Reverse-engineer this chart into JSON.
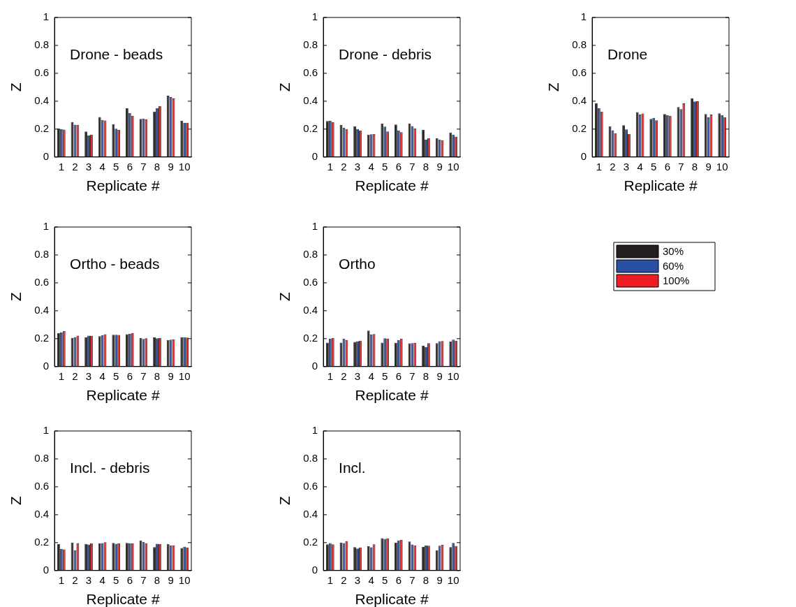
{
  "chart_data": [
    {
      "type": "bar",
      "title": "Drone - beads",
      "xlabel": "Replicate #",
      "ylabel": "Z",
      "categories": [
        "1",
        "2",
        "3",
        "4",
        "5",
        "6",
        "7",
        "8",
        "9",
        "10"
      ],
      "ylim": [
        0,
        1
      ],
      "yticks": [
        0,
        0.2,
        0.4,
        0.6,
        0.8,
        1
      ],
      "grid": false,
      "series": [
        {
          "color": "#231f20",
          "values": [
            0.205,
            0.25,
            0.183,
            0.287,
            0.236,
            0.35,
            0.273,
            0.325,
            0.44,
            0.26
          ]
        },
        {
          "color": "#2b4fa2",
          "values": [
            0.2,
            0.232,
            0.155,
            0.266,
            0.203,
            0.315,
            0.276,
            0.35,
            0.43,
            0.245
          ]
        },
        {
          "color": "#ee1c24",
          "values": [
            0.197,
            0.23,
            0.16,
            0.262,
            0.195,
            0.295,
            0.27,
            0.365,
            0.42,
            0.245
          ]
        }
      ]
    },
    {
      "type": "bar",
      "title": "Drone - debris",
      "xlabel": "Replicate #",
      "ylabel": "Z",
      "categories": [
        "1",
        "2",
        "3",
        "4",
        "5",
        "6",
        "7",
        "8",
        "9",
        "10"
      ],
      "ylim": [
        0,
        1
      ],
      "yticks": [
        0,
        0.2,
        0.4,
        0.6,
        0.8,
        1
      ],
      "grid": false,
      "series": [
        {
          "color": "#231f20",
          "values": [
            0.258,
            0.23,
            0.22,
            0.16,
            0.24,
            0.233,
            0.24,
            0.195,
            0.135,
            0.175
          ]
        },
        {
          "color": "#2b4fa2",
          "values": [
            0.26,
            0.21,
            0.2,
            0.163,
            0.218,
            0.19,
            0.222,
            0.125,
            0.125,
            0.16
          ]
        },
        {
          "color": "#ee1c24",
          "values": [
            0.25,
            0.2,
            0.19,
            0.165,
            0.183,
            0.178,
            0.205,
            0.135,
            0.12,
            0.145
          ]
        }
      ]
    },
    {
      "type": "bar",
      "title": "Drone",
      "xlabel": "Replicate #",
      "ylabel": "Z",
      "categories": [
        "1",
        "2",
        "3",
        "4",
        "5",
        "6",
        "7",
        "8",
        "9",
        "10"
      ],
      "ylim": [
        0,
        1
      ],
      "yticks": [
        0,
        0.2,
        0.4,
        0.6,
        0.8,
        1
      ],
      "grid": false,
      "series": [
        {
          "color": "#231f20",
          "values": [
            0.385,
            0.22,
            0.228,
            0.322,
            0.273,
            0.308,
            0.358,
            0.42,
            0.308,
            0.313
          ]
        },
        {
          "color": "#2b4fa2",
          "values": [
            0.35,
            0.192,
            0.198,
            0.304,
            0.28,
            0.3,
            0.343,
            0.398,
            0.285,
            0.3
          ]
        },
        {
          "color": "#ee1c24",
          "values": [
            0.325,
            0.17,
            0.165,
            0.312,
            0.263,
            0.295,
            0.385,
            0.4,
            0.304,
            0.285
          ]
        }
      ]
    },
    {
      "type": "bar",
      "title": "Ortho - beads",
      "xlabel": "Replicate #",
      "ylabel": "Z",
      "categories": [
        "1",
        "2",
        "3",
        "4",
        "5",
        "6",
        "7",
        "8",
        "9",
        "10"
      ],
      "ylim": [
        0,
        1
      ],
      "yticks": [
        0,
        0.2,
        0.4,
        0.6,
        0.8,
        1
      ],
      "grid": false,
      "series": [
        {
          "color": "#231f20",
          "values": [
            0.24,
            0.205,
            0.21,
            0.218,
            0.228,
            0.232,
            0.205,
            0.21,
            0.19,
            0.21
          ]
        },
        {
          "color": "#2b4fa2",
          "values": [
            0.245,
            0.21,
            0.222,
            0.225,
            0.228,
            0.235,
            0.198,
            0.203,
            0.193,
            0.21
          ]
        },
        {
          "color": "#ee1c24",
          "values": [
            0.255,
            0.222,
            0.22,
            0.232,
            0.227,
            0.24,
            0.203,
            0.205,
            0.195,
            0.208
          ]
        }
      ]
    },
    {
      "type": "bar",
      "title": "Ortho",
      "xlabel": "Replicate #",
      "ylabel": "Z",
      "categories": [
        "1",
        "2",
        "3",
        "4",
        "5",
        "6",
        "7",
        "8",
        "9",
        "10"
      ],
      "ylim": [
        0,
        1
      ],
      "yticks": [
        0,
        0.2,
        0.4,
        0.6,
        0.8,
        1
      ],
      "grid": false,
      "legend": "right",
      "series": [
        {
          "name": "30%",
          "color": "#231f20",
          "values": [
            0.172,
            0.172,
            0.177,
            0.258,
            0.172,
            0.17,
            0.167,
            0.15,
            0.168,
            0.18
          ]
        },
        {
          "name": "60%",
          "color": "#2b4fa2",
          "values": [
            0.2,
            0.2,
            0.182,
            0.23,
            0.203,
            0.19,
            0.168,
            0.14,
            0.182,
            0.193
          ]
        },
        {
          "name": "100%",
          "color": "#ee1c24",
          "values": [
            0.205,
            0.19,
            0.185,
            0.233,
            0.2,
            0.2,
            0.17,
            0.168,
            0.183,
            0.185
          ]
        }
      ]
    },
    {
      "type": "bar",
      "title": "Incl. - debris",
      "xlabel": "Replicate #",
      "ylabel": "Z",
      "categories": [
        "1",
        "2",
        "3",
        "4",
        "5",
        "6",
        "7",
        "8",
        "9",
        "10"
      ],
      "ylim": [
        0,
        1
      ],
      "yticks": [
        0,
        0.2,
        0.4,
        0.6,
        0.8,
        1
      ],
      "grid": false,
      "series": [
        {
          "color": "#231f20",
          "values": [
            0.19,
            0.2,
            0.19,
            0.195,
            0.198,
            0.198,
            0.215,
            0.168,
            0.19,
            0.162
          ]
        },
        {
          "color": "#2b4fa2",
          "values": [
            0.155,
            0.145,
            0.187,
            0.197,
            0.192,
            0.195,
            0.205,
            0.192,
            0.18,
            0.17
          ]
        },
        {
          "color": "#ee1c24",
          "values": [
            0.152,
            0.197,
            0.195,
            0.203,
            0.195,
            0.195,
            0.195,
            0.19,
            0.18,
            0.165
          ]
        }
      ]
    },
    {
      "type": "bar",
      "title": "Incl.",
      "xlabel": "Replicate #",
      "ylabel": "Z",
      "categories": [
        "1",
        "2",
        "3",
        "4",
        "5",
        "6",
        "7",
        "8",
        "9",
        "10"
      ],
      "ylim": [
        0,
        1
      ],
      "yticks": [
        0,
        0.2,
        0.4,
        0.6,
        0.8,
        1
      ],
      "grid": false,
      "series": [
        {
          "color": "#231f20",
          "values": [
            0.188,
            0.2,
            0.168,
            0.175,
            0.232,
            0.2,
            0.208,
            0.17,
            0.145,
            0.168
          ]
        },
        {
          "color": "#2b4fa2",
          "values": [
            0.197,
            0.197,
            0.158,
            0.167,
            0.227,
            0.215,
            0.187,
            0.18,
            0.178,
            0.198
          ]
        },
        {
          "color": "#ee1c24",
          "values": [
            0.188,
            0.21,
            0.165,
            0.188,
            0.23,
            0.22,
            0.18,
            0.178,
            0.185,
            0.177
          ]
        }
      ]
    }
  ]
}
